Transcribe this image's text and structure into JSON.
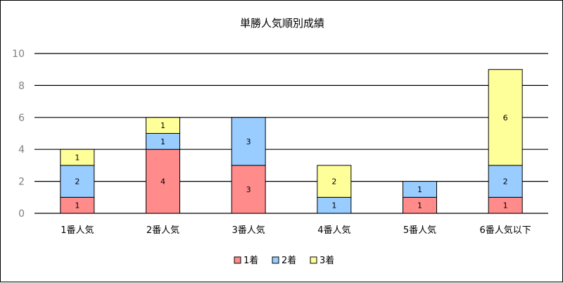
{
  "chart_data": {
    "type": "bar",
    "stacked": true,
    "title": "単勝人気順別成績",
    "categories": [
      "1番人気",
      "2番人気",
      "3番人気",
      "4番人気",
      "5番人気",
      "6番人気以下"
    ],
    "series": [
      {
        "name": "1着",
        "color": "#ff8b8b",
        "values": [
          1,
          4,
          3,
          0,
          1,
          1
        ]
      },
      {
        "name": "2着",
        "color": "#99ccff",
        "values": [
          2,
          1,
          3,
          1,
          1,
          2
        ]
      },
      {
        "name": "3着",
        "color": "#ffff99",
        "values": [
          1,
          1,
          0,
          2,
          0,
          6
        ]
      }
    ],
    "yticks": [
      "0",
      "2",
      "4",
      "6",
      "8",
      "10"
    ],
    "ylim": [
      0,
      10
    ],
    "grid": true,
    "legend_position": "bottom"
  }
}
